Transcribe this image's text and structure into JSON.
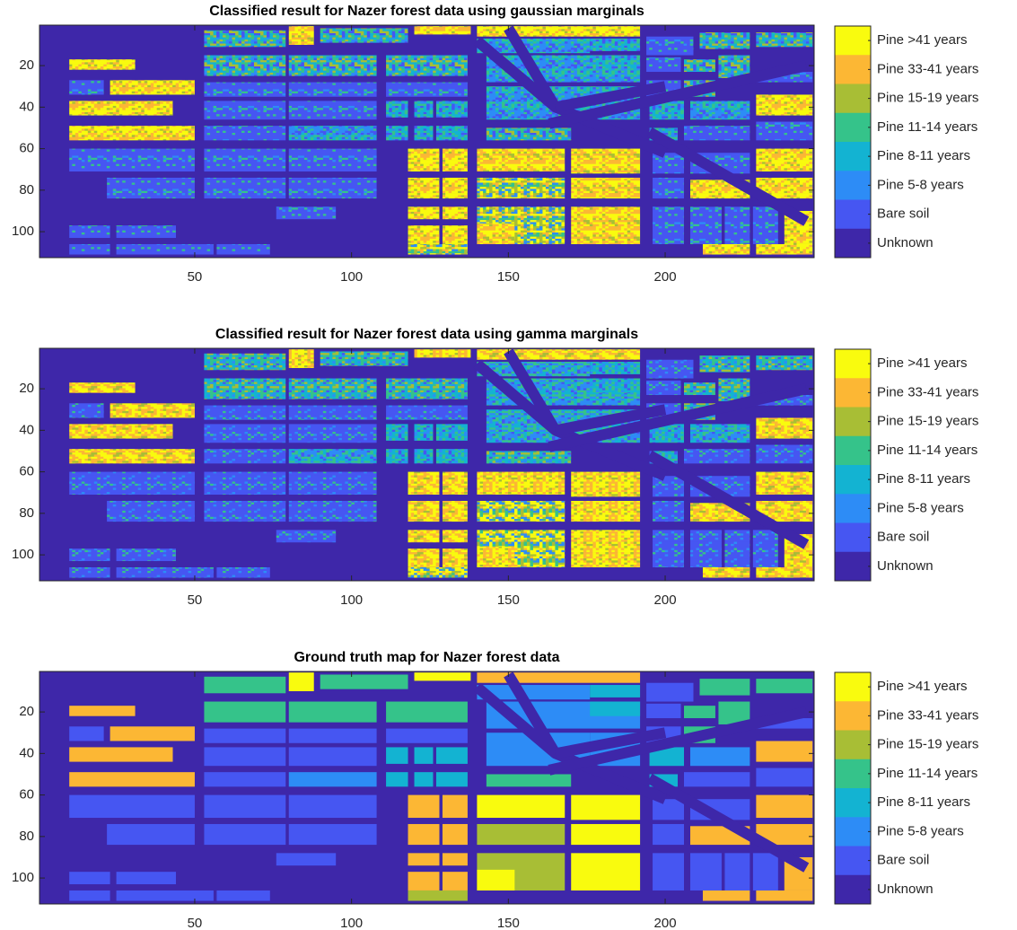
{
  "chart_data": [
    {
      "type": "image",
      "title": "Classified result for Nazer forest data using gaussian marginals",
      "xlim": [
        0.5,
        247.5
      ],
      "ylim": [
        0.5,
        112.5
      ],
      "y_reversed": true,
      "xticks": [
        50,
        100,
        150,
        200
      ],
      "yticks": [
        20,
        40,
        60,
        80,
        100
      ],
      "speckle": true,
      "classes": [
        {
          "name": "Pine >41 years",
          "color": "#f9fb0e"
        },
        {
          "name": "Pine 33-41 years",
          "color": "#fcb734"
        },
        {
          "name": "Pine 15-19 years",
          "color": "#a8be35"
        },
        {
          "name": "Pine 11-14 years",
          "color": "#35c38a"
        },
        {
          "name": "Pine 8-11 years",
          "color": "#13b3d2"
        },
        {
          "name": "Pine 5-8 years",
          "color": "#2d8cf6"
        },
        {
          "name": "Bare soil",
          "color": "#4656f2"
        },
        {
          "name": "Unknown",
          "color": "#3e27a9"
        }
      ]
    },
    {
      "type": "image",
      "title": "Classified result for Nazer forest data using gamma marginals",
      "xlim": [
        0.5,
        247.5
      ],
      "ylim": [
        0.5,
        112.5
      ],
      "y_reversed": true,
      "xticks": [
        50,
        100,
        150,
        200
      ],
      "yticks": [
        20,
        40,
        60,
        80,
        100
      ],
      "speckle": true,
      "classes": [
        {
          "name": "Pine >41 years",
          "color": "#f9fb0e"
        },
        {
          "name": "Pine 33-41 years",
          "color": "#fcb734"
        },
        {
          "name": "Pine 15-19 years",
          "color": "#a8be35"
        },
        {
          "name": "Pine 11-14 years",
          "color": "#35c38a"
        },
        {
          "name": "Pine 8-11 years",
          "color": "#13b3d2"
        },
        {
          "name": "Pine 5-8 years",
          "color": "#2d8cf6"
        },
        {
          "name": "Bare soil",
          "color": "#4656f2"
        },
        {
          "name": "Unknown",
          "color": "#3e27a9"
        }
      ]
    },
    {
      "type": "image",
      "title": "Ground truth map for Nazer forest data",
      "xlim": [
        0.5,
        247.5
      ],
      "ylim": [
        0.5,
        112.5
      ],
      "y_reversed": true,
      "xticks": [
        50,
        100,
        150,
        200
      ],
      "yticks": [
        20,
        40,
        60,
        80,
        100
      ],
      "speckle": false,
      "classes": [
        {
          "name": "Pine >41 years",
          "color": "#f9fb0e"
        },
        {
          "name": "Pine 33-41 years",
          "color": "#fcb734"
        },
        {
          "name": "Pine 15-19 years",
          "color": "#a8be35"
        },
        {
          "name": "Pine 11-14 years",
          "color": "#35c38a"
        },
        {
          "name": "Pine 8-11 years",
          "color": "#13b3d2"
        },
        {
          "name": "Pine 5-8 years",
          "color": "#2d8cf6"
        },
        {
          "name": "Bare soil",
          "color": "#4656f2"
        },
        {
          "name": "Unknown",
          "color": "#3e27a9"
        }
      ]
    }
  ]
}
